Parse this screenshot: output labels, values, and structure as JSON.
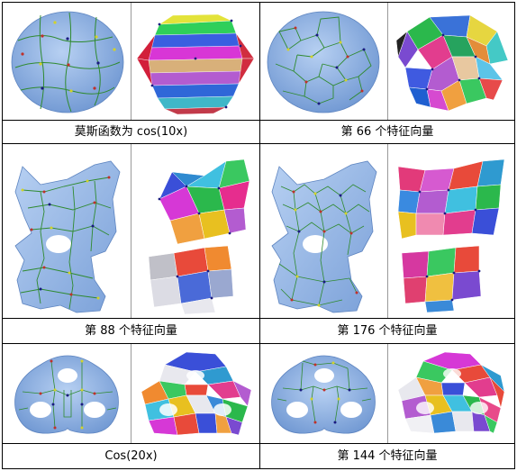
{
  "figure": {
    "rows": [
      {
        "mesh": "ellipsoid",
        "left_caption": "莫斯函数为 cos(10x)",
        "right_caption": "第 66 个特征向量"
      },
      {
        "mesh": "cat",
        "left_caption": "第 88 个特征向量",
        "right_caption": "第 176 个特征向量"
      },
      {
        "mesh": "three-hole-torus",
        "left_caption": "Cos(20x)",
        "right_caption": "第 144 个特征向量"
      }
    ]
  },
  "colors": {
    "mesh_blue": "#8fb4e6",
    "graph_line": "#2f8a2f",
    "critical_min": "#1a1a80",
    "critical_saddle": "#d2d22a",
    "critical_max": "#c0302a"
  }
}
